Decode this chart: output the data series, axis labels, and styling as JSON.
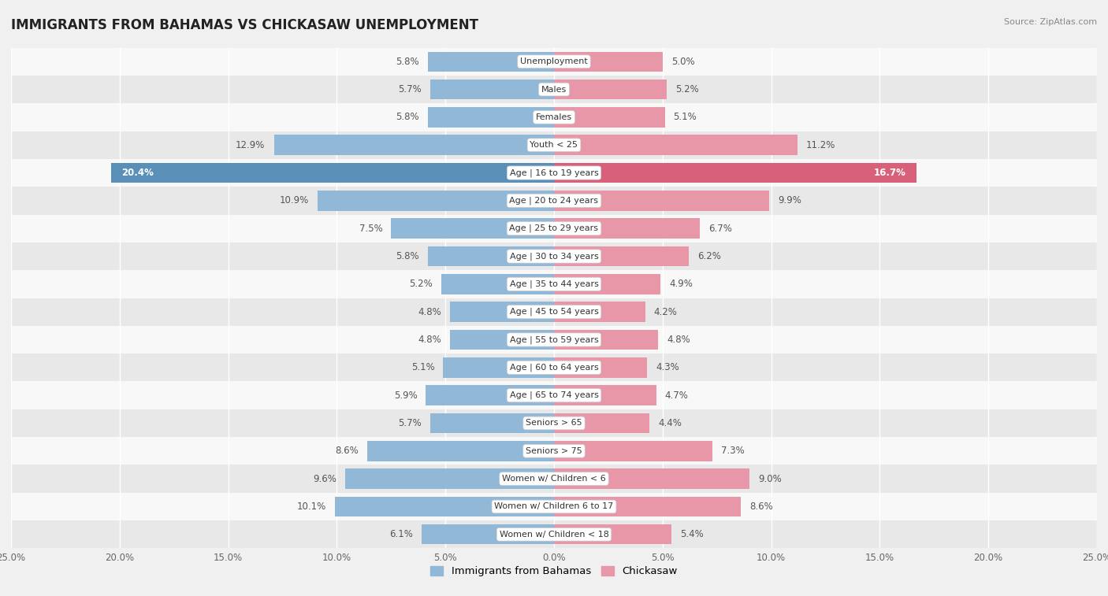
{
  "title": "IMMIGRANTS FROM BAHAMAS VS CHICKASAW UNEMPLOYMENT",
  "source": "Source: ZipAtlas.com",
  "categories": [
    "Unemployment",
    "Males",
    "Females",
    "Youth < 25",
    "Age | 16 to 19 years",
    "Age | 20 to 24 years",
    "Age | 25 to 29 years",
    "Age | 30 to 34 years",
    "Age | 35 to 44 years",
    "Age | 45 to 54 years",
    "Age | 55 to 59 years",
    "Age | 60 to 64 years",
    "Age | 65 to 74 years",
    "Seniors > 65",
    "Seniors > 75",
    "Women w/ Children < 6",
    "Women w/ Children 6 to 17",
    "Women w/ Children < 18"
  ],
  "bahamas_values": [
    5.8,
    5.7,
    5.8,
    12.9,
    20.4,
    10.9,
    7.5,
    5.8,
    5.2,
    4.8,
    4.8,
    5.1,
    5.9,
    5.7,
    8.6,
    9.6,
    10.1,
    6.1
  ],
  "chickasaw_values": [
    5.0,
    5.2,
    5.1,
    11.2,
    16.7,
    9.9,
    6.7,
    6.2,
    4.9,
    4.2,
    4.8,
    4.3,
    4.7,
    4.4,
    7.3,
    9.0,
    8.6,
    5.4
  ],
  "bahamas_color": "#92b8d8",
  "chickasaw_color": "#e897a8",
  "bahamas_highlight_color": "#5a8fb8",
  "chickasaw_highlight_color": "#d9607a",
  "highlight_row": 4,
  "xlim": 25.0,
  "background_color": "#f0f0f0",
  "row_light": "#f8f8f8",
  "row_dark": "#e8e8e8",
  "bar_height": 0.72,
  "label_fontsize": 8.5,
  "title_fontsize": 12,
  "category_fontsize": 8.0
}
